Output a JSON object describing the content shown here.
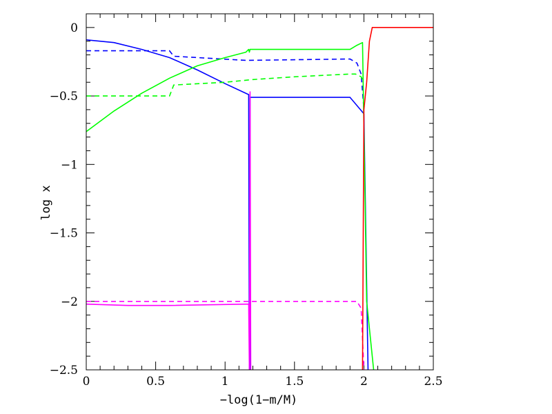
{
  "chart_data": {
    "type": "line",
    "xlabel": "−log(1−m/M)",
    "ylabel": "log x",
    "xlim": [
      0,
      2.5
    ],
    "ylim": [
      -2.5,
      0.1
    ],
    "x_ticks": [
      {
        "value": 0,
        "label": "0"
      },
      {
        "value": 0.5,
        "label": "0.5"
      },
      {
        "value": 1,
        "label": "1"
      },
      {
        "value": 1.5,
        "label": "1.5"
      },
      {
        "value": 2,
        "label": "2"
      },
      {
        "value": 2.5,
        "label": "2.5"
      }
    ],
    "y_ticks": [
      {
        "value": 0,
        "label": "0"
      },
      {
        "value": -0.5,
        "label": "−0.5"
      },
      {
        "value": -1,
        "label": "−1"
      },
      {
        "value": -1.5,
        "label": "−1.5"
      },
      {
        "value": -2,
        "label": "−2"
      },
      {
        "value": -2.5,
        "label": "−2.5"
      }
    ],
    "x_minor_step": 0.1,
    "y_minor_step": 0.1,
    "grid": false,
    "legend": "none",
    "series": [
      {
        "color": "#0000ff",
        "dash": false,
        "points": [
          [
            0,
            -0.09
          ],
          [
            0.2,
            -0.11
          ],
          [
            0.4,
            -0.16
          ],
          [
            0.6,
            -0.22
          ],
          [
            0.8,
            -0.31
          ],
          [
            1.0,
            -0.41
          ],
          [
            1.17,
            -0.49
          ],
          [
            1.175,
            -2.5
          ],
          [
            1.18,
            -2.5
          ],
          [
            1.18,
            -0.51
          ],
          [
            1.9,
            -0.51
          ],
          [
            2.0,
            -0.63
          ],
          [
            2.03,
            -2.5
          ]
        ]
      },
      {
        "color": "#0000ff",
        "dash": true,
        "points": [
          [
            0,
            -0.17
          ],
          [
            0.6,
            -0.17
          ],
          [
            0.63,
            -0.21
          ],
          [
            1.15,
            -0.24
          ],
          [
            1.9,
            -0.23
          ],
          [
            1.95,
            -0.26
          ],
          [
            1.98,
            -0.34
          ],
          [
            2.0,
            -0.6
          ]
        ]
      },
      {
        "color": "#00ff00",
        "dash": false,
        "points": [
          [
            0,
            -0.76
          ],
          [
            0.2,
            -0.61
          ],
          [
            0.4,
            -0.48
          ],
          [
            0.6,
            -0.37
          ],
          [
            0.8,
            -0.28
          ],
          [
            1.0,
            -0.22
          ],
          [
            1.15,
            -0.18
          ],
          [
            1.17,
            -0.16
          ],
          [
            1.175,
            -0.18
          ],
          [
            1.18,
            -0.16
          ],
          [
            1.9,
            -0.16
          ],
          [
            1.95,
            -0.13
          ],
          [
            1.99,
            -0.11
          ],
          [
            2.02,
            -2.0
          ],
          [
            2.07,
            -2.5
          ]
        ]
      },
      {
        "color": "#00ff00",
        "dash": true,
        "points": [
          [
            0,
            -0.5
          ],
          [
            0.6,
            -0.5
          ],
          [
            0.63,
            -0.42
          ],
          [
            1.0,
            -0.4
          ],
          [
            1.2,
            -0.38
          ],
          [
            1.5,
            -0.36
          ],
          [
            1.9,
            -0.34
          ],
          [
            1.94,
            -0.34
          ],
          [
            1.98,
            -0.36
          ],
          [
            2.0,
            -0.4
          ]
        ]
      },
      {
        "color": "#ff00ff",
        "dash": false,
        "points": [
          [
            0,
            -2.02
          ],
          [
            0.3,
            -2.03
          ],
          [
            0.6,
            -2.03
          ],
          [
            1.17,
            -2.02
          ],
          [
            1.175,
            -2.5
          ],
          [
            1.18,
            -0.47
          ],
          [
            1.185,
            -2.5
          ]
        ]
      },
      {
        "color": "#ff00ff",
        "dash": true,
        "points": [
          [
            0,
            -2.0
          ],
          [
            1.9,
            -2.0
          ],
          [
            1.95,
            -2.0
          ],
          [
            1.98,
            -2.05
          ],
          [
            2.0,
            -2.5
          ]
        ]
      },
      {
        "color": "#ff0000",
        "dash": false,
        "points": [
          [
            1.99,
            -2.5
          ],
          [
            2.0,
            -0.6
          ],
          [
            2.02,
            -0.4
          ],
          [
            2.04,
            -0.1
          ],
          [
            2.06,
            0.0
          ],
          [
            2.5,
            0.0
          ]
        ]
      }
    ]
  }
}
